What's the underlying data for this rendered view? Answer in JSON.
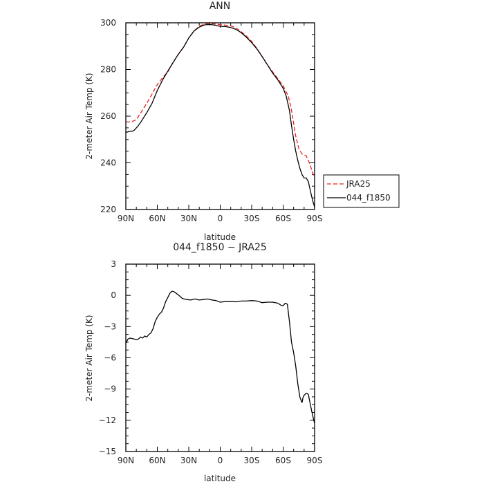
{
  "chart_data": [
    {
      "type": "line",
      "title": "ANN",
      "xlabel": "latitude",
      "ylabel": "2-meter Air Temp (K)",
      "x_tick_labels": [
        "90N",
        "60N",
        "30N",
        "0",
        "30S",
        "60S",
        "90S"
      ],
      "xlim": [
        90,
        -90
      ],
      "ylim": [
        220,
        300
      ],
      "y_major_ticks": [
        220,
        240,
        260,
        280,
        300
      ],
      "legend": "right",
      "series": [
        {
          "name": "JRA25",
          "color": "#e8201c",
          "dash": true,
          "x": [
            90,
            85,
            80,
            75,
            70,
            65,
            60,
            55,
            50,
            45,
            40,
            35,
            30,
            25,
            20,
            15,
            10,
            5,
            0,
            -5,
            -10,
            -15,
            -20,
            -25,
            -30,
            -35,
            -40,
            -45,
            -50,
            -55,
            -60,
            -65,
            -68,
            -70,
            -72,
            -75,
            -78,
            -80,
            -82,
            -85,
            -88,
            -90
          ],
          "y": [
            257.5,
            257.5,
            258.5,
            262,
            265.5,
            269.5,
            273.5,
            276.5,
            279,
            283,
            286.5,
            289.5,
            293.5,
            296.5,
            298.5,
            299.5,
            299.8,
            299.5,
            299.2,
            299,
            298.7,
            297.8,
            296.2,
            294.3,
            292,
            289,
            285.5,
            282,
            279,
            276,
            273,
            268.5,
            262.5,
            257,
            251.5,
            246,
            243.8,
            243.5,
            243,
            240,
            236,
            233.5
          ]
        },
        {
          "name": "044_f1850",
          "color": "#000000",
          "dash": false,
          "x": [
            90,
            88,
            86,
            84,
            82,
            80,
            78,
            75,
            70,
            65,
            60,
            55,
            50,
            45,
            40,
            35,
            30,
            25,
            20,
            15,
            10,
            5,
            0,
            -5,
            -10,
            -15,
            -20,
            -25,
            -30,
            -35,
            -40,
            -45,
            -50,
            -55,
            -60,
            -63,
            -66,
            -68,
            -70,
            -72,
            -74,
            -76,
            -78,
            -80,
            -82,
            -84,
            -86,
            -88,
            -90
          ],
          "y": [
            253,
            253.3,
            253.5,
            253.5,
            254,
            255,
            256,
            258,
            261.5,
            265.5,
            271,
            275.5,
            279.3,
            283,
            286.5,
            289.5,
            293.5,
            296.5,
            298.2,
            299.1,
            299.3,
            299,
            298.5,
            298.4,
            298,
            297.2,
            295.8,
            293.8,
            291.5,
            288.8,
            285.5,
            282,
            278.5,
            275.5,
            272,
            268.5,
            262.5,
            256,
            250,
            245,
            241,
            237.5,
            235,
            233.5,
            233.5,
            232,
            228,
            224,
            221
          ]
        }
      ]
    },
    {
      "type": "line",
      "title": "044_f1850 − JRA25",
      "xlabel": "latitude",
      "ylabel": "2-meter Air Temp (K)",
      "x_tick_labels": [
        "90N",
        "60N",
        "30N",
        "0",
        "30S",
        "60S",
        "90S"
      ],
      "xlim": [
        90,
        -90
      ],
      "ylim": [
        -15,
        3
      ],
      "y_major_ticks": [
        -15,
        -12,
        -9,
        -6,
        -3,
        0,
        3
      ],
      "series": [
        {
          "name": "",
          "color": "#000000",
          "dash": false,
          "x": [
            90,
            88,
            86,
            84,
            82,
            80,
            78,
            76,
            74,
            72,
            70,
            68,
            66,
            64,
            62,
            60,
            58,
            56,
            54,
            52,
            50,
            48,
            46,
            44,
            42,
            40,
            36,
            32,
            28,
            24,
            20,
            16,
            12,
            8,
            4,
            0,
            -5,
            -10,
            -15,
            -20,
            -25,
            -30,
            -35,
            -40,
            -45,
            -50,
            -55,
            -58,
            -60,
            -62,
            -64,
            -66,
            -68,
            -70,
            -72,
            -74,
            -76,
            -78,
            -79,
            -80,
            -82,
            -84,
            -86,
            -88,
            -90
          ],
          "y": [
            -4.6,
            -4.2,
            -4.1,
            -4.15,
            -4.2,
            -4.25,
            -4.2,
            -4.0,
            -4.1,
            -3.9,
            -4.0,
            -3.75,
            -3.6,
            -3.2,
            -2.5,
            -2.1,
            -1.8,
            -1.6,
            -1.2,
            -0.6,
            -0.2,
            0.2,
            0.4,
            0.35,
            0.2,
            0.05,
            -0.3,
            -0.4,
            -0.45,
            -0.35,
            -0.45,
            -0.4,
            -0.35,
            -0.45,
            -0.5,
            -0.65,
            -0.6,
            -0.6,
            -0.62,
            -0.55,
            -0.55,
            -0.5,
            -0.55,
            -0.7,
            -0.65,
            -0.65,
            -0.75,
            -0.95,
            -1.0,
            -0.75,
            -0.85,
            -2.5,
            -4.5,
            -5.5,
            -6.8,
            -8.5,
            -9.8,
            -10.3,
            -9.8,
            -9.6,
            -9.4,
            -9.5,
            -10.5,
            -11.5,
            -12.3
          ]
        }
      ]
    }
  ]
}
